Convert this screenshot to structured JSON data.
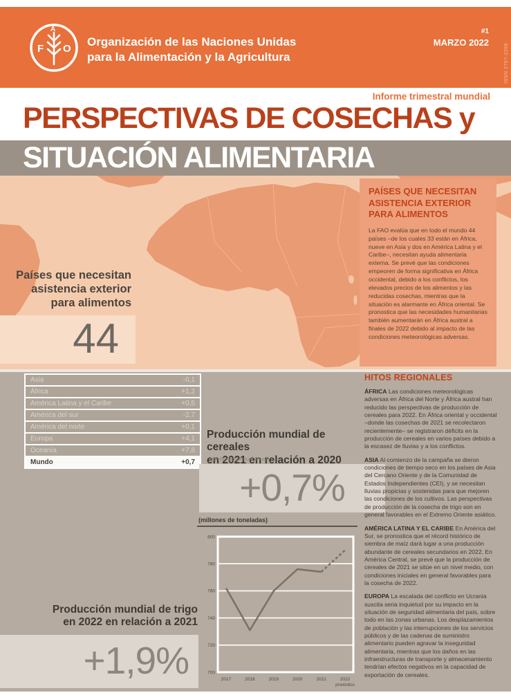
{
  "header": {
    "org_line1": "Organización de las Naciones Unidas",
    "org_line2": "para la Alimentación y la Agricultura",
    "issue_number": "#1",
    "issue_date": "MARZO 2022",
    "issn": "ISSN 2707-2266",
    "report_type": "Informe trimestral mundial",
    "title_line1": "PERSPECTIVAS DE COSECHAS y",
    "title_line2": "SITUACIÓN ALIMENTARIA"
  },
  "map_section": {
    "label": "Países que necesitan asistencia exterior para alimentos",
    "count": "44"
  },
  "assistance_panel": {
    "heading": "PAÍSES QUE NECESITAN ASISTENCIA EXTERIOR PARA ALIMENTOS",
    "body": "La FAO evalúa que en todo el mundo 44 países –de los cuales 33 están en África, nueve en Asia y dos en América Latina y el Caribe–, necesitan ayuda alimentaria externa. Se prevé que las condiciones empeoren de forma significativa en África occidental, debido a los conflictos, los elevados precios de los alimentos y las reducidas cosechas, mientras que la situación es alarmante en África oriental. Se pronostica que las necesidades humanitarias también aumentarán en África austral a finales de 2022 debido al impacto de las condiciones meteorológicas adversas."
  },
  "cereal_table": {
    "rows": [
      {
        "label": "Asia",
        "value": "-0,1"
      },
      {
        "label": "África",
        "value": "+1,2"
      },
      {
        "label": "América Latina y el Caribe",
        "value": "+0,5"
      },
      {
        "label": "América del sur",
        "value": "-2,7"
      },
      {
        "label": "América del norte",
        "value": "+0,1"
      },
      {
        "label": "Europa",
        "value": "+4,1"
      },
      {
        "label": "Oceanía",
        "value": "+7,8"
      },
      {
        "label": "Mundo",
        "value": "+0,7"
      }
    ]
  },
  "cereal_highlight": {
    "title_line1": "Producción mundial de cereales",
    "title_line2": "en 2021 en relación a 2020",
    "subtitle": "(cambio porcentual anual)",
    "value": "+0,7%"
  },
  "wheat_highlight": {
    "title_line1": "Producción mundial de trigo",
    "title_line2": "en 2022 en relación a 2021",
    "value": "+1,9%"
  },
  "chart_data": {
    "type": "line",
    "title": "(millones de toneladas)",
    "x": [
      "2017",
      "2018",
      "2019",
      "2020",
      "2021",
      "2022"
    ],
    "values": [
      762,
      731,
      760,
      776,
      774,
      790
    ],
    "last_point_note": "pronóstico",
    "dashed_from_index": 4,
    "ylim": [
      700,
      800
    ],
    "yticks": [
      700,
      720,
      740,
      760,
      780,
      800
    ],
    "grid": true,
    "line_color": "#7D7165"
  },
  "regional_highlights": {
    "heading": "HITOS REGIONALES",
    "items": [
      {
        "region": "ÁFRICA",
        "text": "Las condiciones meteorológicas adversas en África del Norte y África austral han reducido las perspectivas de producción de cereales para 2022. En África oriental y occidental –donde las cosechas de 2021 se recolectaron recientemente– se registraron déficits en la producción de cereales en varios países debido a la escasez de lluvias y a los conflictos."
      },
      {
        "region": "ASIA",
        "text": "Al comienzo de la campaña se dieron condiciones de tiempo seco en los países de Asia del Cercano Oriente y de la Comunidad de Estados Independientes (CEI), y se necesitan lluvias propicias y sostenidas para que mejoren las condiciones de los cultivos. Las perspectivas de producción de la cosecha de trigo son en general favorables en el Extremo Oriente asiático."
      },
      {
        "region": "AMÉRICA LATINA Y EL CARIBE",
        "text": "En América del Sur, se pronostica que el récord histórico de siembra de maíz dará lugar a una producción abundante de cereales secundarios en 2022. En América Central, se prevé que la producción de cereales de 2021 se sitúe en un nivel medio, con condiciones iniciales en general favorables para la cosecha de 2022."
      },
      {
        "region": "EUROPA",
        "text": "La escalada del conflicto en Ucrania suscita seria inquietud por su impacto en la situación de seguridad alimentaria del país, sobre todo en las zonas urbanas. Los desplazamientos de población y las interrupciones de los servicios públicos y de las cadenas de suministro alimentario pueden agravar la inseguridad alimentaria, mientras que los daños en las infraestructuras de transporte y almacenamiento tendrían efectos negativos en la capacidad de exportación de cereales."
      }
    ]
  },
  "colors": {
    "header_orange": "#E7703B",
    "title_red": "#B8411B",
    "taupe_band": "#9C9186",
    "map_background": "#F5CBAE",
    "continent": "#E99B73",
    "panel_orange": "#EDA07B",
    "accent_heading": "#C2431C",
    "bottom_taupe": "#B5ABA0",
    "number_gray": "#8D867E"
  }
}
